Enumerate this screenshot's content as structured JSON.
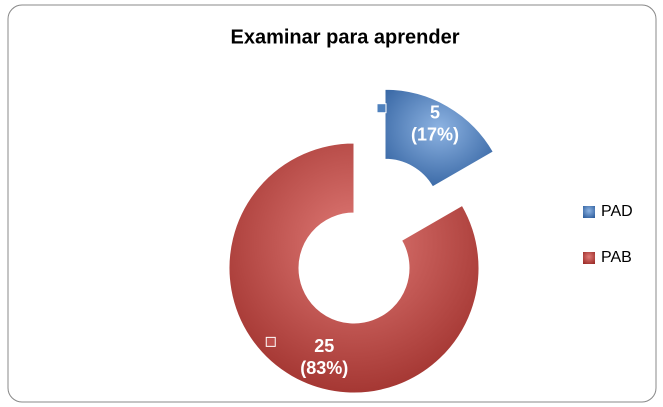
{
  "chart_data": {
    "type": "doughnut",
    "title": "Examinar para aprender",
    "categories": [
      "PAD",
      "PAB"
    ],
    "values": [
      5,
      25
    ],
    "percent_labels": [
      "(17%)",
      "(83%)"
    ],
    "colors": [
      "#4f81bd",
      "#c0504d"
    ],
    "legend": "right",
    "exploded": [
      true,
      false
    ]
  }
}
